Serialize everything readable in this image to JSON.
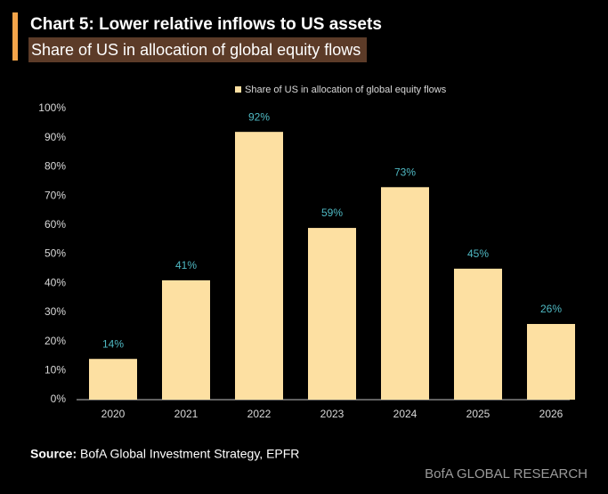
{
  "chart_data": {
    "type": "bar",
    "title": "Chart 5: Lower relative inflows to US assets",
    "subtitle": "Share of US in allocation of global equity flows",
    "categories": [
      "2020",
      "2021",
      "2022",
      "2023",
      "2024",
      "2025",
      "2026"
    ],
    "series": [
      {
        "name": "Share of US in allocation of global equity flows",
        "color": "#fde0a2",
        "values": [
          14,
          41,
          92,
          59,
          73,
          45,
          26
        ],
        "value_labels": [
          "14%",
          "41%",
          "92%",
          "59%",
          "73%",
          "45%",
          "26%"
        ]
      }
    ],
    "ylim": [
      0,
      100
    ],
    "yticks": [
      {
        "value": 0,
        "label": "0%"
      },
      {
        "value": 10,
        "label": "10%"
      },
      {
        "value": 20,
        "label": "20%"
      },
      {
        "value": 30,
        "label": "30%"
      },
      {
        "value": 40,
        "label": "40%"
      },
      {
        "value": 50,
        "label": "50%"
      },
      {
        "value": 60,
        "label": "60%"
      },
      {
        "value": 70,
        "label": "70%"
      },
      {
        "value": 80,
        "label": "80%"
      },
      {
        "value": 90,
        "label": "90%"
      },
      {
        "value": 100,
        "label": "100%"
      }
    ],
    "grid": false,
    "legend": "top",
    "source_label": "Source:",
    "source": "BofA Global Investment Strategy, EPFR",
    "brand": "BofA GLOBAL RESEARCH"
  }
}
